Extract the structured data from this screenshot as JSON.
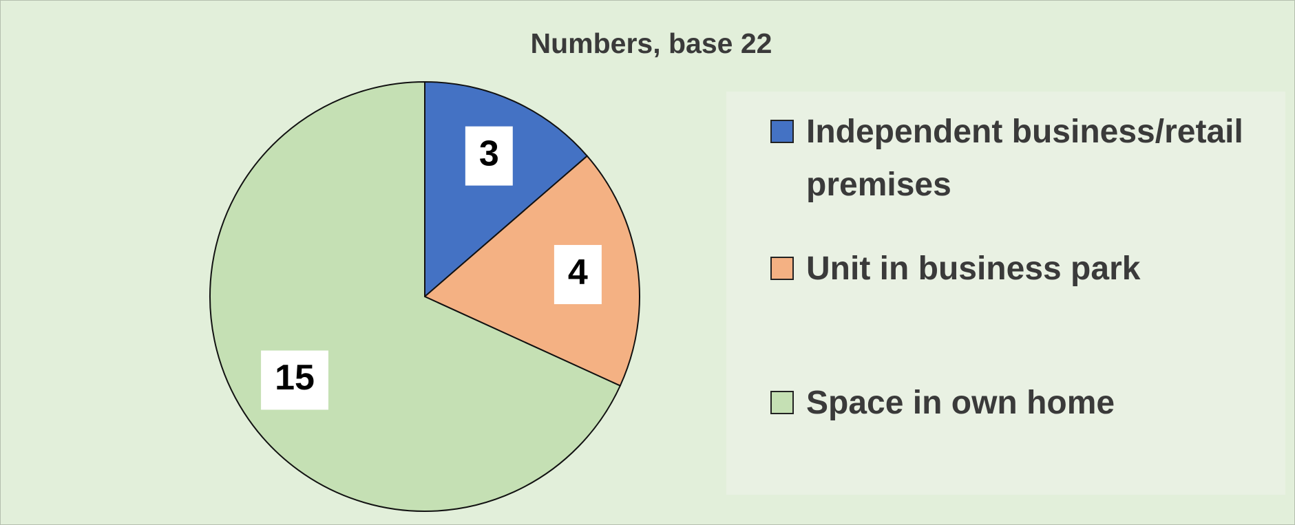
{
  "chart_data": {
    "type": "pie",
    "title": "Numbers, base 22",
    "categories": [
      "Independent business/retail premises",
      "Unit in business park",
      "Space in own home"
    ],
    "values": [
      3,
      4,
      15
    ],
    "colors": [
      "#4472c4",
      "#f4b183",
      "#c5e0b4"
    ],
    "legend": "right"
  }
}
